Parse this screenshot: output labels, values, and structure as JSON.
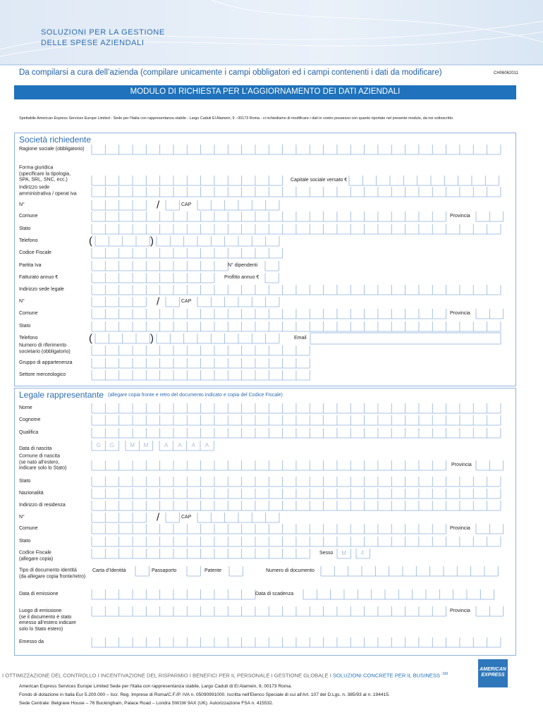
{
  "header": {
    "brand": [
      "SOLUZIONI PER LA GESTIONE",
      "DELLE SPESE AZIENDALI"
    ],
    "instruction": "Da compilarsi a cura dell’azienda (compilare unicamente i campi obbligatori ed i campi contenenti i dati da modificare)",
    "code": "CH06062011",
    "form_title": "MODULO DI RICHIESTA PER L’AGGIORNAMENTO DEI DATI AZIENDALI",
    "intro": "Spettabile American Express  Services Europe Limited - Sede per l'Italia con rappresentanza stabile - Largo Caduti El Alamein, 9 - 00173 Roma -  vi richiediamo di modificare i dati in vostro possesso con quanto riportato nel presente modulo,  da noi sottoscritto."
  },
  "company": {
    "title": "Società richiedente",
    "rows": [
      [
        "Ragione sociale (obbligatorio)"
      ],
      [
        "Forma giuridica\n(specificare la tipologia,\nSPA, SRL, SNC, ecc.)",
        "Capitale sociale versato €"
      ],
      [
        "Indirizzo sede\namministrativa / operat iva"
      ],
      [
        "N°",
        "/",
        "CAP"
      ],
      [
        "Comune",
        "Provincia"
      ],
      [
        "Stato"
      ],
      [
        "Telefono",
        "(",
        ")"
      ],
      [
        "Codice Fiscale"
      ],
      [
        "Partita Iva",
        "N° dipendenti"
      ],
      [
        "Fatturato annuo €",
        "Profitto annuo €"
      ],
      [
        "Indirizzo sede legale"
      ],
      [
        "N°",
        "/",
        "CAP"
      ],
      [
        "Comune",
        "Provincia"
      ],
      [
        "Stato"
      ],
      [
        "Telefono",
        "(",
        ")",
        "Email"
      ],
      [
        "Numero di riferimento\nsocietario (obbligatorio)"
      ],
      [
        "Gruppo di appartenenza"
      ],
      [
        "Settore merceologico"
      ]
    ]
  },
  "legal_representative": {
    "title": "Legale rappresentante",
    "note": "(allegare copia fronte e retro del documento indicato e copia del Codice Fiscale)",
    "rows": [
      [
        "Nome"
      ],
      [
        "Cognome"
      ],
      [
        "Qualifica"
      ],
      [
        "Data di nascita",
        "G",
        "G",
        "M",
        "M",
        "A",
        "A",
        "A",
        "A"
      ],
      [
        "Comune di nascita\n(se nato all’estero,\nindicare solo lo Stato)",
        "Provincia"
      ],
      [
        "Stato"
      ],
      [
        "Nazionalità"
      ],
      [
        "Indirizzo di residenza"
      ],
      [
        "N°",
        "/",
        "CAP"
      ],
      [
        "Comune",
        "Provincia"
      ],
      [
        "Stato"
      ],
      [
        "Codice Fiscale\n(allegare copia)",
        "Sesso",
        "M",
        "F"
      ],
      [
        "Tipo di documento identità\n(da allegare copia fronte/retro)",
        "Carta d’Identità",
        "Passaporto",
        "Patente",
        "Numero di documento"
      ],
      [
        "Data di emissione",
        "Data di scadenza"
      ],
      [
        "Luogo di emissione\n(se il documento è stato\nemesso all’estero indicare\nsolo lo Stato estero)",
        "Provincia"
      ],
      [
        "Emesso da"
      ]
    ]
  },
  "footer": {
    "tagline": "I OTTIMIZZAZIONE DEL CONTROLLO I INCENTIVAZIONE DEL RISPARMIO I BENEFICI PER IL PERSONALE  I GESTIONE GLOBALE I",
    "tagline_highlight": "SOLUZIONI CONCRETE PER IL BUSINESS",
    "service_mark": ".SM",
    "logo": [
      "AMERICAN",
      "EXPRESS"
    ],
    "address": [
      "American Express   Services  Europe Limited  Sede per l'Italia con rappresentanza  stabile, Largo Caduti di El Alamein, 9, 00173  Roma.",
      "Fondo di dotazione in Italia Eur 5.200.000  – Iscr. Reg. Imprese di Roma/C.F./P. IVA n. 05090991000.  Iscritta nell'Elenco Speciale di cui all'Art. 107 del D.Lgs. n. 385/93 al n. 194415.",
      "Sede Centrale: Belgrave House – 76 Buckingham, Palace Road – Londra SW1W 9AX (UK). Autorizzazione FSA n. 415532."
    ]
  }
}
